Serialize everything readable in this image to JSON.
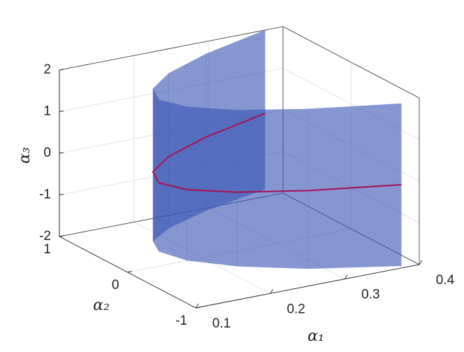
{
  "chart_data": {
    "type": "surface3d",
    "xlabel": "α₁",
    "ylabel": "α₂",
    "zlabel": "α₃",
    "xlim": [
      0.1,
      0.4
    ],
    "ylim": [
      -1,
      1
    ],
    "zlim": [
      -2,
      2
    ],
    "xticks": [
      0.1,
      0.2,
      0.3,
      0.4
    ],
    "yticks": [
      -1,
      0,
      1
    ],
    "zticks": [
      -2,
      -1,
      0,
      1,
      2
    ],
    "grid": true,
    "surface": {
      "color": "#3a55b4",
      "alpha2": [
        -1,
        -0.75,
        -0.5,
        -0.25,
        0,
        0.25,
        0.5,
        0.75,
        1
      ],
      "alpha1": [
        0.376,
        0.274,
        0.201,
        0.157,
        0.142,
        0.157,
        0.201,
        0.274,
        0.376
      ],
      "alpha3_low": [
        -1.95,
        -1.88,
        -1.78,
        -1.7,
        -1.65,
        -1.67,
        -1.72,
        -1.77,
        -1.82
      ],
      "alpha3_high": [
        1.95,
        1.96,
        1.97,
        1.99,
        2,
        2,
        2,
        2,
        2
      ]
    },
    "curve": {
      "color": "#a0185a",
      "alpha2": [
        -1,
        -0.75,
        -0.5,
        -0.25,
        0,
        0.25,
        0.5,
        0.75,
        1
      ],
      "alpha1": [
        0.376,
        0.274,
        0.201,
        0.157,
        0.142,
        0.157,
        0.201,
        0.274,
        0.376
      ],
      "alpha3": [
        0,
        0,
        0,
        0,
        0,
        0,
        0,
        0,
        0
      ]
    }
  }
}
